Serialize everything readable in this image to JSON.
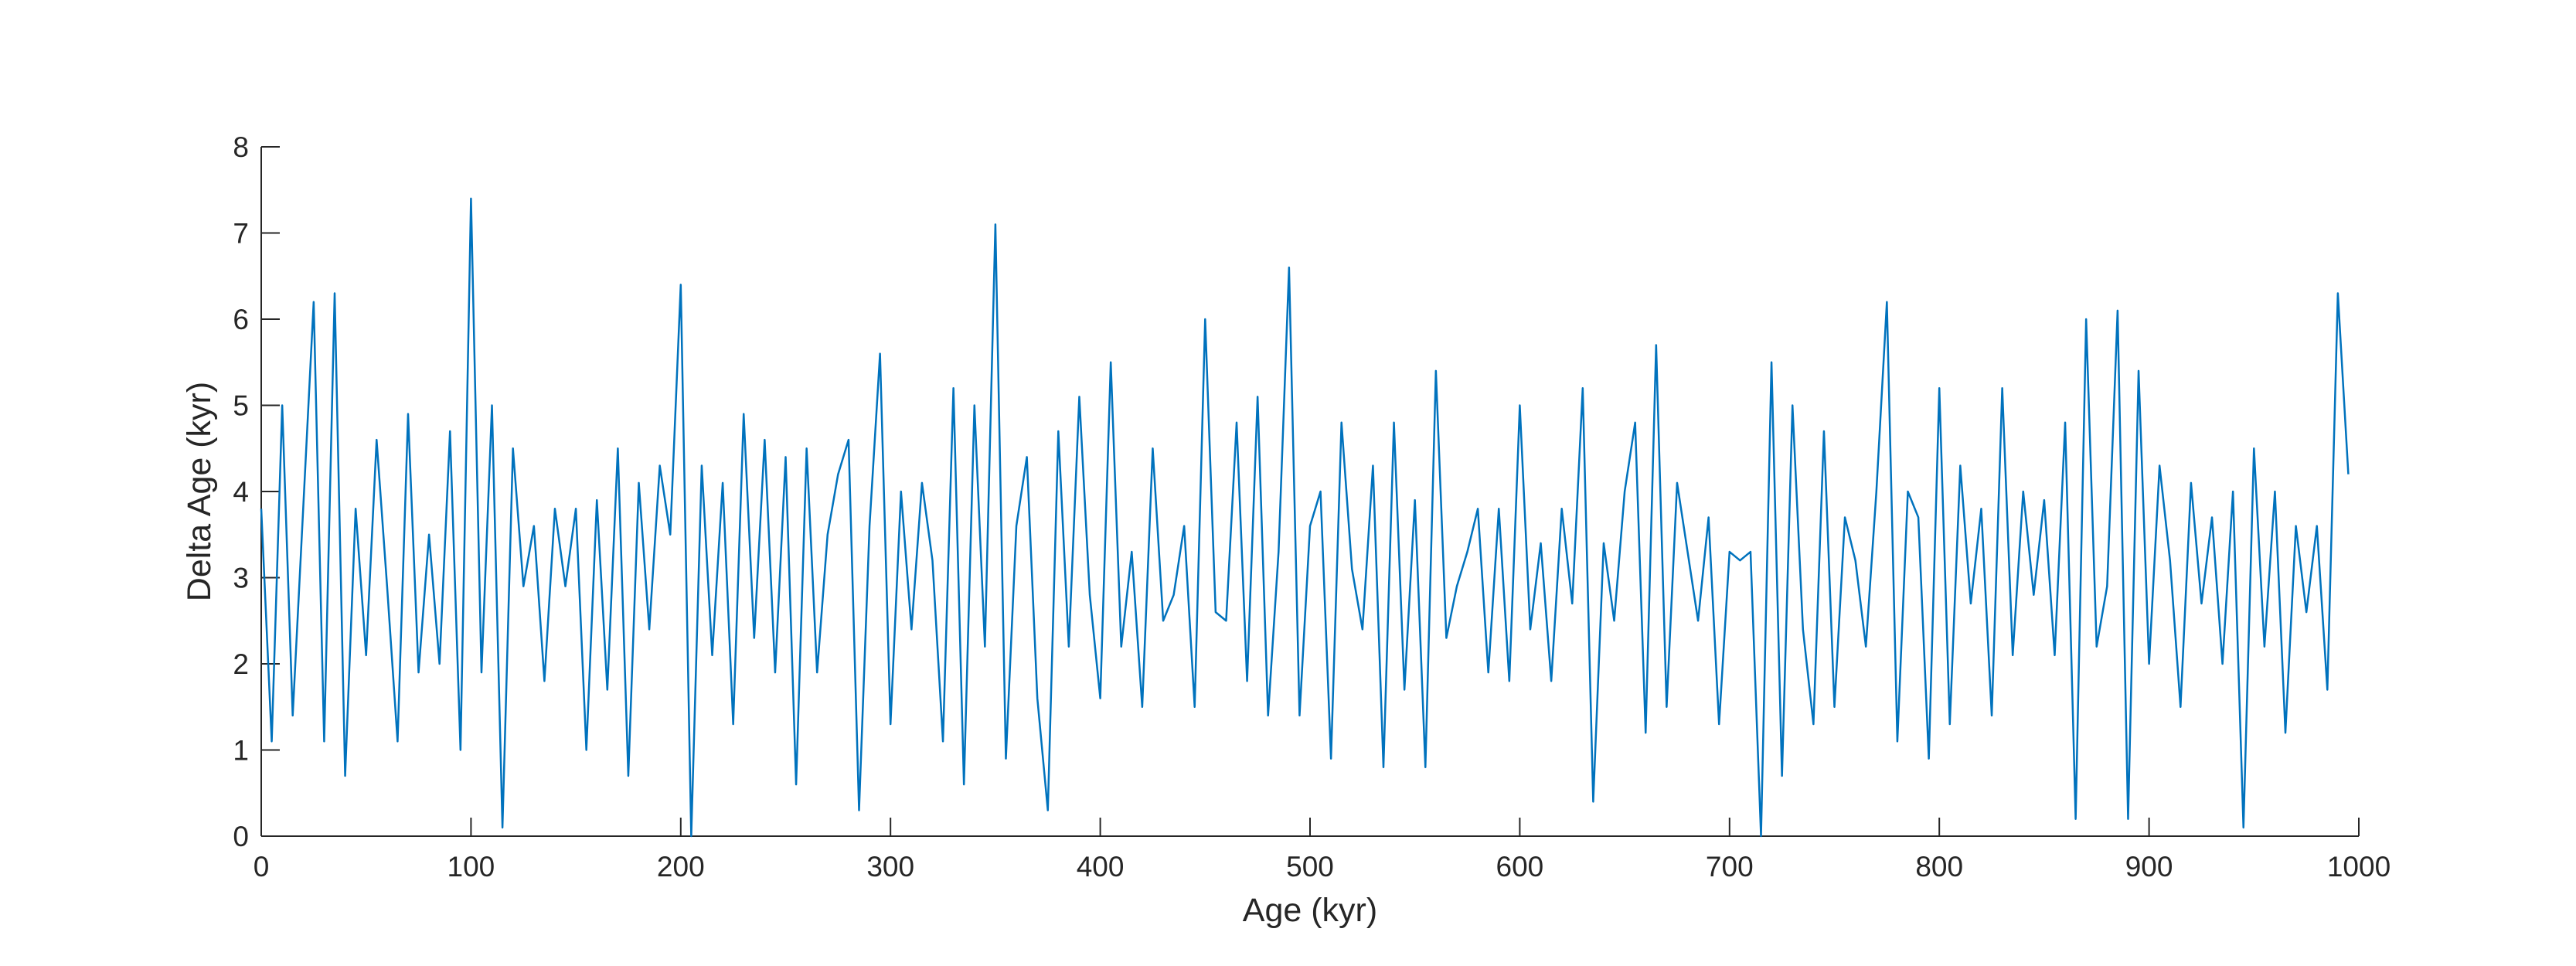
{
  "chart_data": {
    "type": "line",
    "xlabel": "Age (kyr)",
    "ylabel": "Delta Age (kyr)",
    "x": [
      0,
      5,
      10,
      15,
      20,
      25,
      30,
      35,
      40,
      45,
      50,
      55,
      60,
      65,
      70,
      75,
      80,
      85,
      90,
      95,
      100,
      105,
      110,
      115,
      120,
      125,
      130,
      135,
      140,
      145,
      150,
      155,
      160,
      165,
      170,
      175,
      180,
      185,
      190,
      195,
      200,
      205,
      210,
      215,
      220,
      225,
      230,
      235,
      240,
      245,
      250,
      255,
      260,
      265,
      270,
      275,
      280,
      285,
      290,
      295,
      300,
      305,
      310,
      315,
      320,
      325,
      330,
      335,
      340,
      345,
      350,
      355,
      360,
      365,
      370,
      375,
      380,
      385,
      390,
      395,
      400,
      405,
      410,
      415,
      420,
      425,
      430,
      435,
      440,
      445,
      450,
      455,
      460,
      465,
      470,
      475,
      480,
      485,
      490,
      495,
      500,
      505,
      510,
      515,
      520,
      525,
      530,
      535,
      540,
      545,
      550,
      555,
      560,
      565,
      570,
      575,
      580,
      585,
      590,
      595,
      600,
      605,
      610,
      615,
      620,
      625,
      630,
      635,
      640,
      645,
      650,
      655,
      660,
      665,
      670,
      675,
      680,
      685,
      690,
      695,
      700,
      705,
      710,
      715,
      720,
      725,
      730,
      735,
      740,
      745,
      750,
      755,
      760,
      765,
      770,
      775,
      780,
      785,
      790,
      795,
      800,
      805,
      810,
      815,
      820,
      825,
      830,
      835,
      840,
      845,
      850,
      855,
      860,
      865,
      870,
      875,
      880,
      885,
      890,
      895,
      900,
      905,
      910,
      915,
      920,
      925,
      930,
      935,
      940,
      945,
      950,
      955,
      960,
      965,
      970,
      975,
      980,
      985,
      990,
      995
    ],
    "series": [
      {
        "color": "#0072BD",
        "values": [
          3.8,
          1.1,
          5.0,
          1.4,
          3.8,
          6.2,
          1.1,
          6.3,
          0.7,
          3.8,
          2.1,
          4.6,
          2.9,
          1.1,
          4.9,
          1.9,
          3.5,
          2.0,
          4.7,
          1.0,
          7.4,
          1.9,
          5.0,
          0.1,
          4.5,
          2.9,
          3.6,
          1.8,
          3.8,
          2.9,
          3.8,
          1.0,
          3.9,
          1.7,
          4.5,
          0.7,
          4.1,
          2.4,
          4.3,
          3.5,
          6.4,
          0.0,
          4.3,
          2.1,
          4.1,
          1.3,
          4.9,
          2.3,
          4.6,
          1.9,
          4.4,
          0.6,
          4.5,
          1.9,
          3.5,
          4.2,
          4.6,
          0.3,
          3.6,
          5.6,
          1.3,
          4.0,
          2.4,
          4.1,
          3.2,
          1.1,
          5.2,
          0.6,
          5.0,
          2.2,
          7.1,
          0.9,
          3.6,
          4.4,
          1.6,
          0.3,
          4.7,
          2.2,
          5.1,
          2.8,
          1.6,
          5.5,
          2.2,
          3.3,
          1.5,
          4.5,
          2.5,
          2.8,
          3.6,
          1.5,
          6.0,
          2.6,
          2.5,
          4.8,
          1.8,
          5.1,
          1.4,
          3.3,
          6.6,
          1.4,
          3.6,
          4.0,
          0.9,
          4.8,
          3.1,
          2.4,
          4.3,
          0.8,
          4.8,
          1.7,
          3.9,
          0.8,
          5.4,
          2.3,
          2.9,
          3.3,
          3.8,
          1.9,
          3.8,
          1.8,
          5.0,
          2.4,
          3.4,
          1.8,
          3.8,
          2.7,
          5.2,
          0.4,
          3.4,
          2.5,
          4.0,
          4.8,
          1.2,
          5.7,
          1.5,
          4.1,
          3.3,
          2.5,
          3.7,
          1.3,
          3.3,
          3.2,
          3.3,
          0.0,
          5.5,
          0.7,
          5.0,
          2.4,
          1.3,
          4.7,
          1.5,
          3.7,
          3.2,
          2.2,
          4.0,
          6.2,
          1.1,
          4.0,
          3.7,
          0.9,
          5.2,
          1.3,
          4.3,
          2.7,
          3.8,
          1.4,
          5.2,
          2.1,
          4.0,
          2.8,
          3.9,
          2.1,
          4.8,
          0.2,
          6.0,
          2.2,
          2.9,
          6.1,
          0.2,
          5.4,
          2.0,
          4.3,
          3.2,
          1.5,
          4.1,
          2.7,
          3.7,
          2.0,
          4.0,
          0.1,
          4.5,
          2.2,
          4.0,
          1.2,
          3.6,
          2.6,
          3.6,
          1.7,
          6.3,
          4.2
        ]
      }
    ],
    "xlim": [
      0,
      1000
    ],
    "xticks": [
      0,
      100,
      200,
      300,
      400,
      500,
      600,
      700,
      800,
      900,
      1000
    ],
    "ylim": [
      0,
      8
    ],
    "yticks": [
      0,
      1,
      2,
      3,
      4,
      5,
      6,
      7,
      8
    ]
  }
}
